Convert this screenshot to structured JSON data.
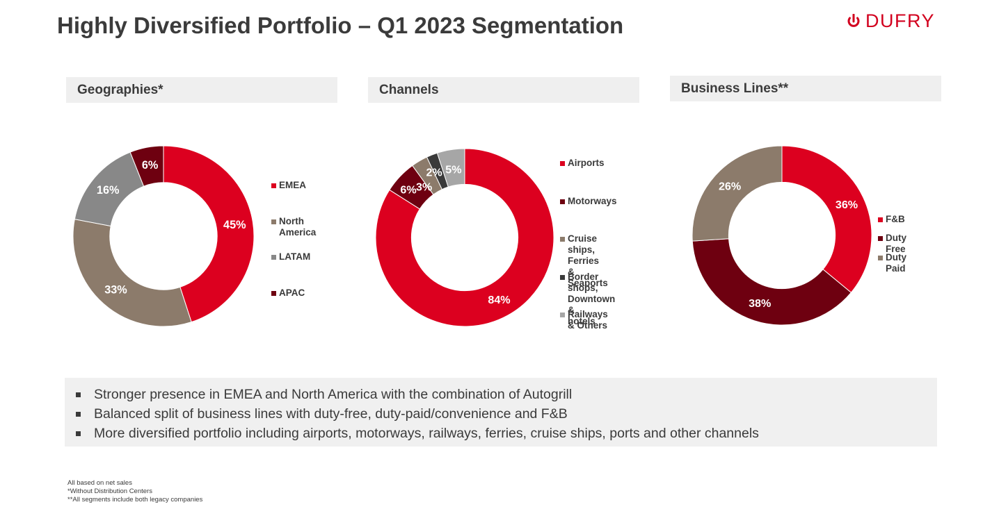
{
  "title": "Highly Diversified Portfolio – Q1 2023 Segmentation",
  "logo": {
    "text": "DUFRY",
    "icon": "dufry-logo-icon",
    "color": "#d2001e"
  },
  "panels": {
    "geographies": "Geographies*",
    "channels": "Channels",
    "business_lines": "Business Lines**"
  },
  "chart_data": [
    {
      "type": "pie",
      "donut": true,
      "title": "Geographies*",
      "categories": [
        "EMEA",
        "North America",
        "LATAM",
        "APAC"
      ],
      "values": [
        45,
        33,
        16,
        6
      ],
      "labels": [
        "45%",
        "33%",
        "16%",
        "6%"
      ],
      "colors": [
        "#dc001f",
        "#8c7b6b",
        "#888888",
        "#6e0010"
      ],
      "legend_position": "right"
    },
    {
      "type": "pie",
      "donut": true,
      "title": "Channels",
      "categories": [
        "Airports",
        "Motorways",
        "Cruise ships,\nFerries & Seaports",
        "Border shops,\nDowntown &\nhotels",
        "Railways & Others"
      ],
      "values": [
        84,
        6,
        3,
        2,
        5
      ],
      "labels": [
        "84%",
        "6%",
        "3%",
        "2%",
        "5%"
      ],
      "colors": [
        "#dc001f",
        "#6e0010",
        "#8c7b6b",
        "#3a3a3a",
        "#a6a6a6"
      ],
      "legend_position": "right"
    },
    {
      "type": "pie",
      "donut": true,
      "title": "Business Lines**",
      "categories": [
        "F&B",
        "Duty Free",
        "Duty Paid"
      ],
      "values": [
        36,
        38,
        26
      ],
      "labels": [
        "36%",
        "38%",
        "26%"
      ],
      "colors": [
        "#dc001f",
        "#6e0010",
        "#8c7b6b"
      ],
      "legend_position": "right"
    }
  ],
  "bullets": [
    "Stronger presence in EMEA and North America with the combination of Autogrill",
    "Balanced split of business lines with duty-free, duty-paid/convenience and F&B",
    "More diversified portfolio including airports, motorways, railways, ferries, cruise ships, ports and other channels"
  ],
  "footnotes": [
    "All based on net sales",
    "*Without Distribution Centers",
    "**All segments include both legacy companies"
  ]
}
